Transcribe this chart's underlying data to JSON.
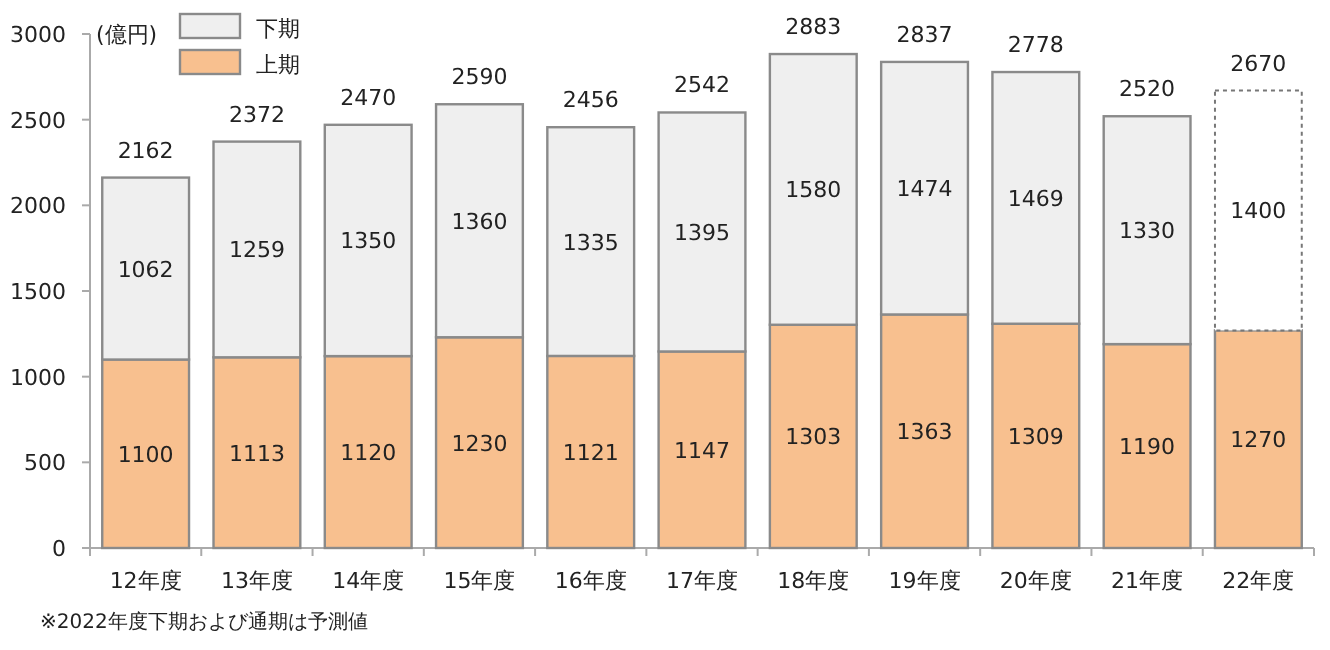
{
  "chart_data": {
    "type": "bar",
    "stacked": true,
    "ylabel": "(億円)",
    "categories": [
      "12年度",
      "13年度",
      "14年度",
      "15年度",
      "16年度",
      "17年度",
      "18年度",
      "19年度",
      "20年度",
      "21年度",
      "22年度"
    ],
    "series": [
      {
        "name": "上期",
        "color": "#f8c08f",
        "values": [
          1100,
          1113,
          1120,
          1230,
          1121,
          1147,
          1303,
          1363,
          1309,
          1190,
          1270
        ]
      },
      {
        "name": "下期",
        "color": "#efefef",
        "colors": [
          "#efefef",
          "#efefef",
          "#efefef",
          "#efefef",
          "#efefef",
          "#efefef",
          "#efefef",
          "#efefef",
          "#efefef",
          "#efefef",
          "#ffffff"
        ],
        "values": [
          1062,
          1259,
          1350,
          1360,
          1335,
          1395,
          1580,
          1474,
          1469,
          1330,
          1400
        ]
      }
    ],
    "totals": [
      "2162",
      "2372",
      "2470",
      "2590",
      "2456",
      "2542",
      "2883",
      "2837",
      "2778",
      "2520",
      "2670"
    ],
    "data_labels": true,
    "ylim": [
      0,
      3000
    ],
    "yticks": [
      0,
      500,
      1000,
      1500,
      2000,
      2500,
      3000
    ],
    "legend": "top left",
    "grid": false,
    "annotations": [
      "※2022年度下期および通期は予測値"
    ]
  }
}
